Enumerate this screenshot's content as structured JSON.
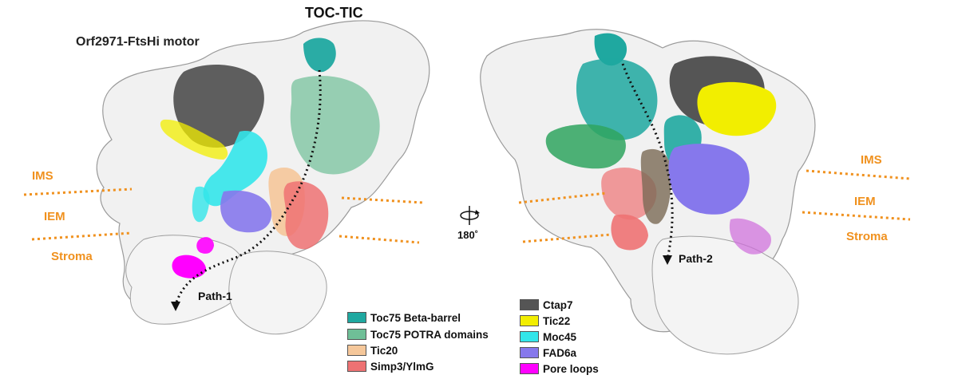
{
  "title": "TOC-TIC",
  "subtitle": "Orf2971-FtsHi motor",
  "membrane_labels": {
    "left": {
      "ims": "IMS",
      "iem": "IEM",
      "stroma": "Stroma"
    },
    "right": {
      "ims": "IMS",
      "iem": "IEM",
      "stroma": "Stroma"
    }
  },
  "paths": {
    "path1": "Path-1",
    "path2": "Path-2"
  },
  "rotation": {
    "label": "180˚",
    "icon": "rotation-arrow-icon"
  },
  "legend": {
    "column1": [
      {
        "label": "Toc75 Beta-barrel",
        "color": "#1fa8a0"
      },
      {
        "label": "Toc75 POTRA domains",
        "color": "#6fbf97"
      },
      {
        "label": "Tic20",
        "color": "#f5c79a"
      },
      {
        "label": "Simp3/YlmG",
        "color": "#ee7273"
      }
    ],
    "column2": [
      {
        "label": "Ctap7",
        "color": "#555555"
      },
      {
        "label": "Tic22",
        "color": "#f2ee00"
      },
      {
        "label": "Moc45",
        "color": "#33e6ea"
      },
      {
        "label": "FAD6a",
        "color": "#8678ec"
      },
      {
        "label": "Pore loops",
        "color": "#ff00ff"
      }
    ]
  },
  "colors": {
    "membrane_line": "#f0911e",
    "surface": "#f1f1f1",
    "surface_outline": "#9a9a9a"
  }
}
